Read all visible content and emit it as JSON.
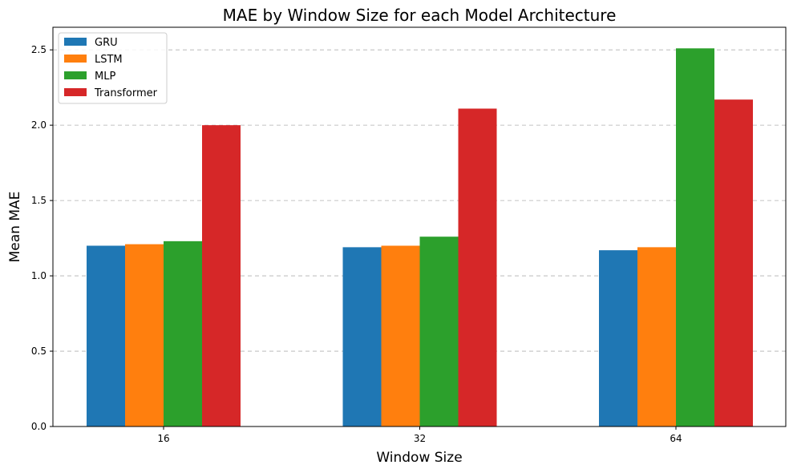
{
  "chart_data": {
    "type": "bar",
    "title": "MAE by Window Size for each Model Architecture",
    "xlabel": "Window Size",
    "ylabel": "Mean MAE",
    "categories": [
      "16",
      "32",
      "64"
    ],
    "ylim": [
      0,
      2.65
    ],
    "yticks": [
      "0.0",
      "0.5",
      "1.0",
      "1.5",
      "2.0",
      "2.5"
    ],
    "grid": "y-dashed",
    "legend_position": "top-left",
    "series": [
      {
        "name": "GRU",
        "color": "#1f77b4",
        "values": [
          1.2,
          1.19,
          1.17
        ]
      },
      {
        "name": "LSTM",
        "color": "#ff7f0e",
        "values": [
          1.21,
          1.2,
          1.19
        ]
      },
      {
        "name": "MLP",
        "color": "#2ca02c",
        "values": [
          1.23,
          1.26,
          2.51
        ]
      },
      {
        "name": "Transformer",
        "color": "#d62728",
        "values": [
          2.0,
          2.11,
          2.17
        ]
      }
    ]
  }
}
